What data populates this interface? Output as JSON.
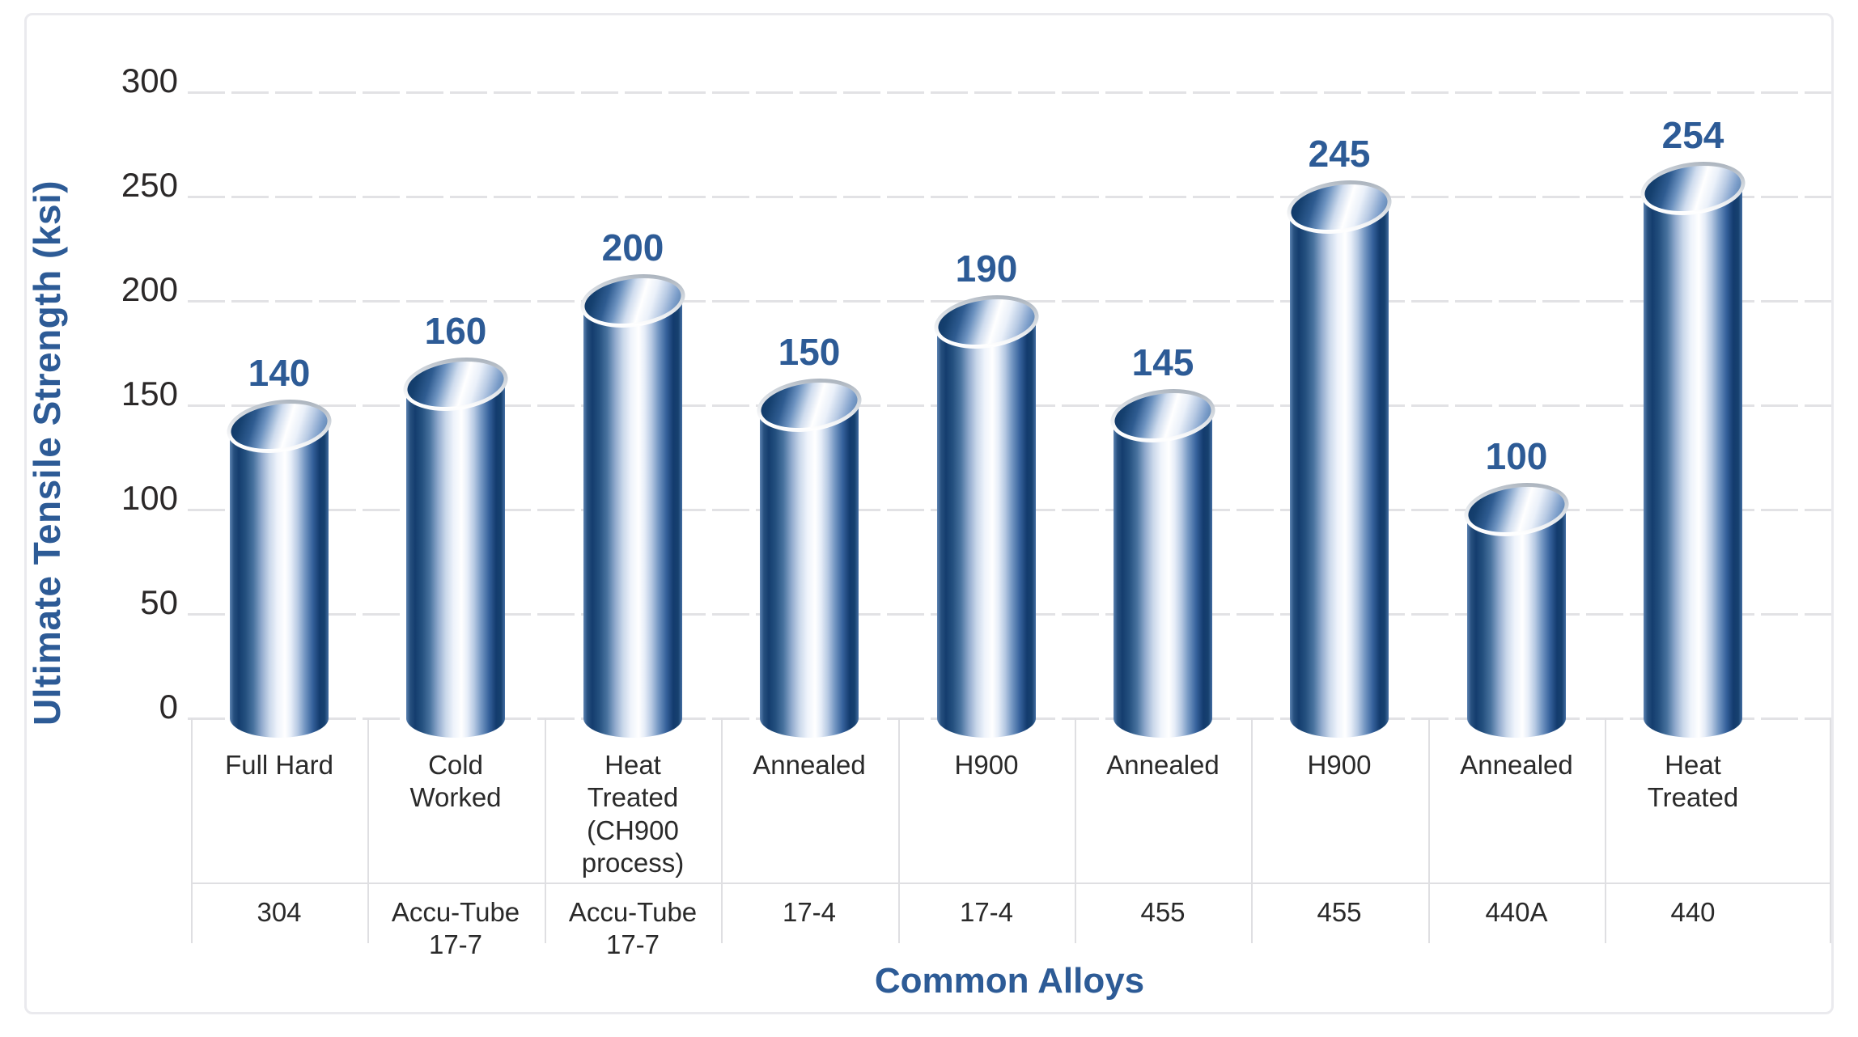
{
  "chart_data": {
    "type": "bar",
    "title": "",
    "ylabel": "Ultimate Tensile Strength (ksi)",
    "xlabel": "Common Alloys",
    "ylim": [
      0,
      300
    ],
    "yticks": [
      0,
      50,
      100,
      150,
      200,
      250,
      300
    ],
    "grid": "horizontal dashed light-gray gridlines",
    "legend_position": "none",
    "bar_style": "3d metallic blue open-tube cylinders with silver rims",
    "bars": [
      {
        "alloy": "304",
        "condition": "Full Hard",
        "value": 140
      },
      {
        "alloy": "Accu-Tube 17-7",
        "condition": "Cold Worked",
        "value": 160
      },
      {
        "alloy": "Accu-Tube 17-7",
        "condition": "Heat Treated (CH900 process)",
        "value": 200
      },
      {
        "alloy": "17-4",
        "condition": "Annealed",
        "value": 150
      },
      {
        "alloy": "17-4",
        "condition": "H900",
        "value": 190
      },
      {
        "alloy": "455",
        "condition": "Annealed",
        "value": 145
      },
      {
        "alloy": "455",
        "condition": "H900",
        "value": 245
      },
      {
        "alloy": "440A",
        "condition": "Annealed",
        "value": 100
      },
      {
        "alloy": "440",
        "condition": "Heat Treated",
        "value": 254
      }
    ],
    "colors": {
      "label_blue": "#2d5b96",
      "tick_text": "#2b2828",
      "category_text": "#2a2a2a",
      "grid_line": "#e2e2e5",
      "table_line": "#dfdfe2",
      "frame_border": "#eaeaee",
      "background": "#ffffff",
      "cylinder_dark": "#133b6e",
      "cylinder_mid": "#49739f",
      "cylinder_highlight": "#ffffff",
      "rim_silver": "#c6ccd4"
    }
  }
}
